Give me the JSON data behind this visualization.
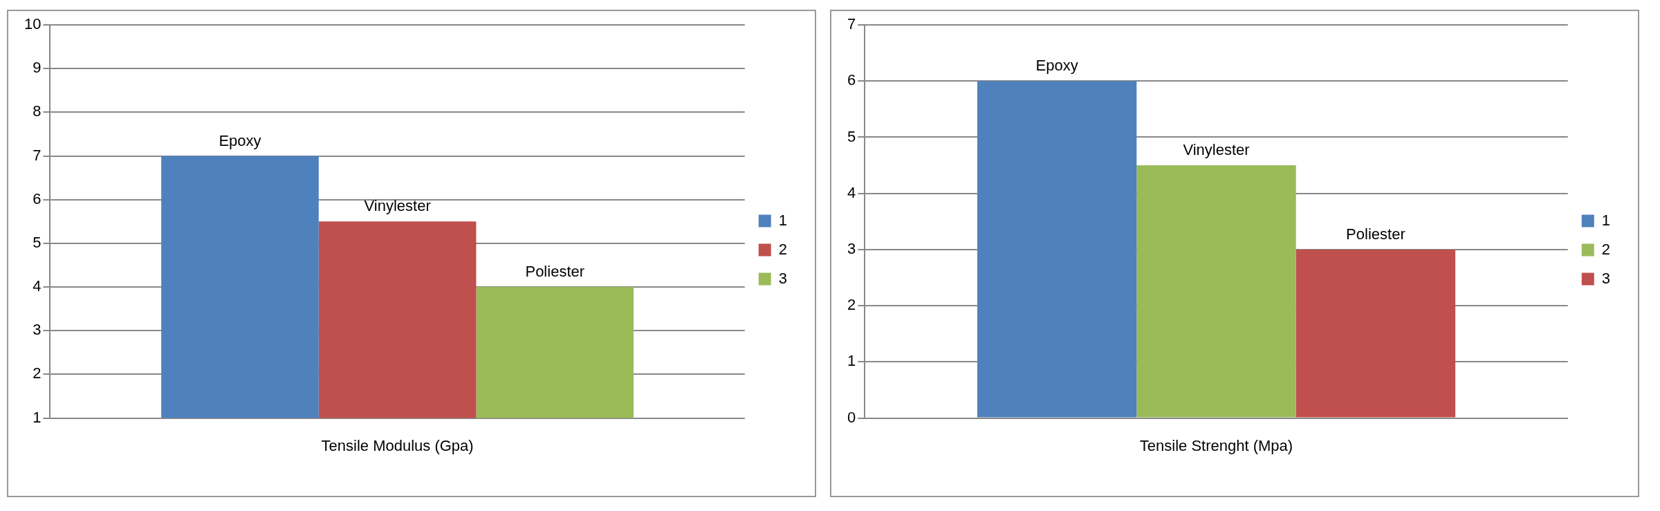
{
  "chart_data": [
    {
      "type": "bar",
      "categories": [
        "Tensile Modulus (Gpa)"
      ],
      "series": [
        {
          "name": "1",
          "color": "#4f81bd",
          "values": [
            7
          ]
        },
        {
          "name": "2",
          "color": "#c0504d",
          "values": [
            5.5
          ]
        },
        {
          "name": "3",
          "color": "#9bbb59",
          "values": [
            4
          ]
        }
      ],
      "ylim": [
        1,
        10
      ],
      "yticks": [
        1,
        2,
        3,
        4,
        5,
        6,
        7,
        8,
        9,
        10
      ],
      "grid": "y",
      "legend": "right",
      "annotations": [
        "Epoxy",
        "Vinylester",
        "Poliester"
      ]
    },
    {
      "type": "bar",
      "categories": [
        "Tensile Strenght (Mpa)"
      ],
      "series": [
        {
          "name": "1",
          "color": "#4f81bd",
          "values": [
            6
          ]
        },
        {
          "name": "2",
          "color": "#9bbb59",
          "values": [
            4.5
          ]
        },
        {
          "name": "3",
          "color": "#c0504d",
          "values": [
            3
          ]
        }
      ],
      "ylim": [
        0,
        7
      ],
      "yticks": [
        0,
        1,
        2,
        3,
        4,
        5,
        6,
        7
      ],
      "grid": "y",
      "legend": "right",
      "annotations": [
        "Epoxy",
        "Vinylester",
        "Poliester"
      ]
    }
  ]
}
